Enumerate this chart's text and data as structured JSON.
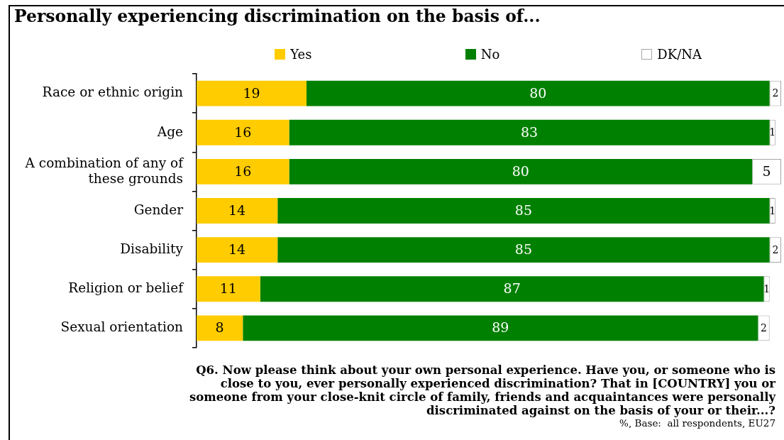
{
  "chart_data": {
    "type": "bar",
    "orientation": "horizontal",
    "stacked": true,
    "title": "Personally experiencing discrimination on the basis of...",
    "categories": [
      "Race or ethnic origin",
      "Age",
      "A combination of any of these grounds",
      "Gender",
      "Disability",
      "Religion or belief",
      "Sexual orientation"
    ],
    "series": [
      {
        "name": "Yes",
        "color": "#ffcc00",
        "values": [
          19,
          16,
          16,
          14,
          14,
          11,
          8
        ]
      },
      {
        "name": "No",
        "color": "#008000",
        "values": [
          80,
          83,
          80,
          85,
          85,
          87,
          89
        ]
      },
      {
        "name": "DK/NA",
        "color": "#ffffff",
        "values": [
          2,
          1,
          5,
          1,
          2,
          1,
          2
        ]
      }
    ],
    "xlim": [
      0,
      101
    ],
    "tick_labels": "y",
    "data_labels": true,
    "legend": "top",
    "annotations": [
      "Q6. Now please think about your own personal experience. Have you, or someone who is\nclose to you, ever personally experienced discrimination? That in [COUNTRY] you or\nsomeone from your close-knit circle of family, friends and acquaintances were personally\ndiscriminated against on the basis of your or their...?",
      "%, Base:  all respondents, EU27"
    ]
  }
}
